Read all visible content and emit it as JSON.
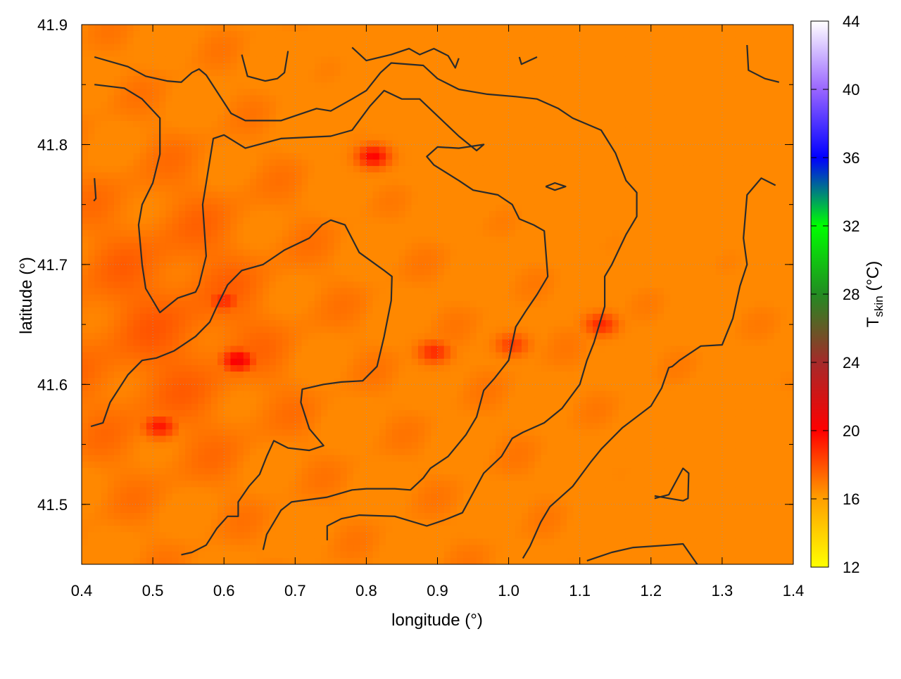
{
  "chart_data": {
    "type": "heatmap",
    "xlabel": "longitude (°)",
    "ylabel": "latitude (°)",
    "colorbar_label_main": "T",
    "colorbar_label_sub": "skin",
    "colorbar_label_unit": " (°C)",
    "xlim": [
      0.4,
      1.4
    ],
    "ylim": [
      41.45,
      41.9
    ],
    "x_ticks": [
      "0.4",
      "0.5",
      "0.6",
      "0.7",
      "0.8",
      "0.9",
      "1.0",
      "1.1",
      "1.2",
      "1.3",
      "1.4"
    ],
    "y_ticks": [
      "41.5",
      "41.6",
      "41.7",
      "41.8",
      "41.9"
    ],
    "colorbar_range": [
      12,
      44
    ],
    "colorbar_ticks": [
      "12",
      "16",
      "20",
      "24",
      "28",
      "32",
      "36",
      "40",
      "44"
    ],
    "colorbar_colors": [
      "#ffff00",
      "#ffa000",
      "#ff0000",
      "#a52a2a",
      "#228b22",
      "#00ff00",
      "#0000ff",
      "#9966ff",
      "#ffffff"
    ],
    "grid": true,
    "hotspots": [
      {
        "lon": 0.62,
        "lat": 41.62,
        "temp": 20.5
      },
      {
        "lon": 0.81,
        "lat": 41.79,
        "temp": 20.0
      },
      {
        "lon": 0.51,
        "lat": 41.565,
        "temp": 19.5
      },
      {
        "lon": 0.6,
        "lat": 41.67,
        "temp": 19.0
      },
      {
        "lon": 0.895,
        "lat": 41.627,
        "temp": 19.0
      },
      {
        "lon": 1.005,
        "lat": 41.633,
        "temp": 18.5
      },
      {
        "lon": 1.13,
        "lat": 41.65,
        "temp": 19.0
      }
    ],
    "contours": [
      [
        [
          0.418,
          41.873
        ],
        [
          0.465,
          41.865
        ],
        [
          0.49,
          41.857
        ],
        [
          0.52,
          41.853
        ],
        [
          0.54,
          41.852
        ],
        [
          0.555,
          41.86
        ],
        [
          0.565,
          41.863
        ],
        [
          0.575,
          41.858
        ],
        [
          0.61,
          41.826
        ],
        [
          0.63,
          41.82
        ],
        [
          0.65,
          41.82
        ],
        [
          0.68,
          41.82
        ],
        [
          0.73,
          41.83
        ],
        [
          0.75,
          41.828
        ],
        [
          0.78,
          41.838
        ],
        [
          0.8,
          41.845
        ],
        [
          0.82,
          41.86
        ],
        [
          0.835,
          41.868
        ],
        [
          0.88,
          41.866
        ],
        [
          0.9,
          41.855
        ],
        [
          0.93,
          41.846
        ],
        [
          0.97,
          41.842
        ],
        [
          1.01,
          41.84
        ],
        [
          1.04,
          41.838
        ],
        [
          1.07,
          41.83
        ],
        [
          1.09,
          41.822
        ],
        [
          1.13,
          41.812
        ],
        [
          1.15,
          41.793
        ],
        [
          1.165,
          41.77
        ],
        [
          1.18,
          41.76
        ],
        [
          1.18,
          41.74
        ],
        [
          1.165,
          41.725
        ],
        [
          1.145,
          41.7
        ],
        [
          1.135,
          41.69
        ],
        [
          1.135,
          41.665
        ],
        [
          1.12,
          41.635
        ],
        [
          1.11,
          41.62
        ],
        [
          1.1,
          41.6
        ],
        [
          1.075,
          41.58
        ],
        [
          1.05,
          41.568
        ],
        [
          1.02,
          41.56
        ],
        [
          1.005,
          41.555
        ],
        [
          0.99,
          41.54
        ],
        [
          0.965,
          41.526
        ],
        [
          0.935,
          41.493
        ],
        [
          0.91,
          41.487
        ],
        [
          0.885,
          41.482
        ],
        [
          0.84,
          41.49
        ],
        [
          0.79,
          41.491
        ],
        [
          0.765,
          41.488
        ],
        [
          0.745,
          41.482
        ],
        [
          0.745,
          41.47
        ]
      ],
      [
        [
          0.418,
          41.85
        ],
        [
          0.46,
          41.847
        ],
        [
          0.485,
          41.838
        ],
        [
          0.51,
          41.822
        ],
        [
          0.51,
          41.792
        ],
        [
          0.5,
          41.768
        ],
        [
          0.485,
          41.75
        ],
        [
          0.48,
          41.733
        ],
        [
          0.485,
          41.7
        ],
        [
          0.49,
          41.68
        ],
        [
          0.5,
          41.67
        ],
        [
          0.51,
          41.66
        ],
        [
          0.535,
          41.672
        ],
        [
          0.56,
          41.677
        ],
        [
          0.565,
          41.683
        ],
        [
          0.575,
          41.707
        ],
        [
          0.57,
          41.75
        ],
        [
          0.575,
          41.768
        ],
        [
          0.585,
          41.805
        ],
        [
          0.6,
          41.808
        ],
        [
          0.63,
          41.797
        ],
        [
          0.68,
          41.805
        ],
        [
          0.75,
          41.807
        ],
        [
          0.78,
          41.812
        ],
        [
          0.805,
          41.832
        ],
        [
          0.825,
          41.845
        ],
        [
          0.85,
          41.838
        ],
        [
          0.875,
          41.838
        ],
        [
          0.93,
          41.807
        ],
        [
          0.955,
          41.795
        ],
        [
          0.965,
          41.8
        ],
        [
          0.93,
          41.797
        ],
        [
          0.9,
          41.798
        ],
        [
          0.885,
          41.79
        ],
        [
          0.895,
          41.783
        ],
        [
          0.93,
          41.77
        ],
        [
          0.95,
          41.762
        ],
        [
          0.985,
          41.758
        ],
        [
          1.005,
          41.75
        ],
        [
          1.015,
          41.738
        ],
        [
          1.035,
          41.733
        ],
        [
          1.05,
          41.728
        ],
        [
          1.055,
          41.69
        ],
        [
          1.04,
          41.675
        ],
        [
          1.025,
          41.662
        ],
        [
          1.01,
          41.648
        ],
        [
          1.0,
          41.62
        ],
        [
          0.98,
          41.605
        ],
        [
          0.965,
          41.595
        ],
        [
          0.955,
          41.573
        ],
        [
          0.94,
          41.558
        ],
        [
          0.915,
          41.54
        ],
        [
          0.89,
          41.53
        ],
        [
          0.88,
          41.522
        ],
        [
          0.862,
          41.512
        ],
        [
          0.84,
          41.513
        ],
        [
          0.8,
          41.513
        ],
        [
          0.78,
          41.512
        ],
        [
          0.745,
          41.506
        ],
        [
          0.695,
          41.502
        ],
        [
          0.68,
          41.495
        ],
        [
          0.66,
          41.475
        ],
        [
          0.655,
          41.462
        ]
      ],
      [
        [
          0.413,
          41.565
        ],
        [
          0.43,
          41.568
        ],
        [
          0.44,
          41.585
        ],
        [
          0.465,
          41.608
        ],
        [
          0.485,
          41.62
        ],
        [
          0.505,
          41.622
        ],
        [
          0.53,
          41.628
        ],
        [
          0.56,
          41.64
        ],
        [
          0.58,
          41.652
        ],
        [
          0.59,
          41.665
        ],
        [
          0.605,
          41.683
        ],
        [
          0.625,
          41.695
        ],
        [
          0.655,
          41.7
        ],
        [
          0.685,
          41.712
        ],
        [
          0.72,
          41.722
        ],
        [
          0.738,
          41.733
        ],
        [
          0.75,
          41.737
        ],
        [
          0.77,
          41.733
        ],
        [
          0.79,
          41.71
        ],
        [
          0.825,
          41.695
        ],
        [
          0.836,
          41.69
        ],
        [
          0.835,
          41.67
        ],
        [
          0.825,
          41.64
        ],
        [
          0.815,
          41.615
        ],
        [
          0.795,
          41.603
        ],
        [
          0.765,
          41.602
        ],
        [
          0.74,
          41.6
        ],
        [
          0.71,
          41.596
        ],
        [
          0.708,
          41.585
        ],
        [
          0.72,
          41.563
        ],
        [
          0.74,
          41.549
        ],
        [
          0.72,
          41.545
        ],
        [
          0.69,
          41.547
        ],
        [
          0.67,
          41.553
        ],
        [
          0.66,
          41.54
        ],
        [
          0.65,
          41.525
        ],
        [
          0.635,
          41.515
        ],
        [
          0.62,
          41.502
        ],
        [
          0.62,
          41.49
        ],
        [
          0.605,
          41.49
        ],
        [
          0.59,
          41.48
        ],
        [
          0.575,
          41.466
        ],
        [
          0.555,
          41.46
        ],
        [
          0.54,
          41.458
        ]
      ],
      [
        [
          1.02,
          41.455
        ],
        [
          1.03,
          41.465
        ],
        [
          1.045,
          41.485
        ],
        [
          1.058,
          41.498
        ],
        [
          1.09,
          41.515
        ],
        [
          1.115,
          41.535
        ],
        [
          1.13,
          41.546
        ],
        [
          1.145,
          41.555
        ],
        [
          1.16,
          41.564
        ],
        [
          1.2,
          41.582
        ],
        [
          1.215,
          41.597
        ],
        [
          1.225,
          41.614
        ],
        [
          1.23,
          41.615
        ],
        [
          1.24,
          41.62
        ],
        [
          1.27,
          41.632
        ],
        [
          1.3,
          41.633
        ],
        [
          1.315,
          41.655
        ],
        [
          1.325,
          41.682
        ],
        [
          1.335,
          41.7
        ],
        [
          1.33,
          41.722
        ],
        [
          1.335,
          41.758
        ],
        [
          1.355,
          41.772
        ],
        [
          1.375,
          41.766
        ]
      ],
      [
        [
          1.11,
          41.453
        ],
        [
          1.145,
          41.46
        ],
        [
          1.175,
          41.464
        ],
        [
          1.225,
          41.466
        ],
        [
          1.245,
          41.467
        ],
        [
          1.265,
          41.45
        ]
      ],
      [
        [
          1.205,
          41.505
        ],
        [
          1.225,
          41.508
        ],
        [
          1.245,
          41.53
        ],
        [
          1.253,
          41.526
        ],
        [
          1.252,
          41.505
        ],
        [
          1.245,
          41.503
        ],
        [
          1.205,
          41.507
        ]
      ],
      [
        [
          1.335,
          41.883
        ],
        [
          1.337,
          41.862
        ],
        [
          1.36,
          41.855
        ],
        [
          1.38,
          41.852
        ]
      ],
      [
        [
          0.625,
          41.875
        ],
        [
          0.633,
          41.857
        ],
        [
          0.658,
          41.853
        ],
        [
          0.675,
          41.855
        ],
        [
          0.685,
          41.86
        ],
        [
          0.69,
          41.878
        ]
      ],
      [
        [
          0.78,
          41.881
        ],
        [
          0.8,
          41.87
        ],
        [
          0.835,
          41.875
        ],
        [
          0.86,
          41.88
        ],
        [
          0.875,
          41.875
        ],
        [
          0.895,
          41.88
        ],
        [
          0.915,
          41.874
        ],
        [
          0.925,
          41.864
        ],
        [
          0.93,
          41.872
        ]
      ],
      [
        [
          1.015,
          41.873
        ],
        [
          1.018,
          41.867
        ],
        [
          1.04,
          41.873
        ]
      ],
      [
        [
          1.052,
          41.765
        ],
        [
          1.065,
          41.768
        ],
        [
          1.08,
          41.765
        ],
        [
          1.065,
          41.762
        ],
        [
          1.052,
          41.765
        ]
      ],
      [
        [
          0.418,
          41.772
        ],
        [
          0.42,
          41.755
        ],
        [
          0.417,
          41.753
        ]
      ]
    ]
  }
}
